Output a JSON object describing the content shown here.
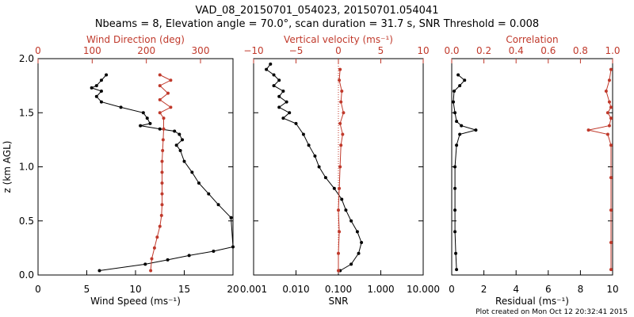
{
  "title_line1": "VAD_08_20150701_054023, 20150701.054041",
  "title_line2": "Nbeams = 8, Elevation angle = 70.0°, scan duration = 31.7 s, SNR Threshold = 0.008",
  "footer": "Plot created on Mon Oct 12 20:32:41 2015",
  "colors": {
    "primary": "#000000",
    "secondary": "#c0392b"
  },
  "chart_data": [
    {
      "type": "scatter",
      "panel": "wind",
      "ylabel": "z (km AGL)",
      "ylim": [
        0,
        2
      ],
      "yticks": [
        "0.0",
        "0.5",
        "1.0",
        "1.5",
        "2.0"
      ],
      "bottom_axis": {
        "label": "Wind Speed (ms⁻¹)",
        "range": [
          0,
          20
        ],
        "ticks": [
          "0",
          "5",
          "10",
          "15",
          "20"
        ]
      },
      "top_axis": {
        "label": "Wind Direction (deg)",
        "range": [
          0,
          360
        ],
        "ticks": [
          "0",
          "100",
          "200",
          "300"
        ]
      },
      "series": [
        {
          "color": "#000000",
          "axis": "bottom",
          "points": [
            [
              6.3,
              0.04
            ],
            [
              11,
              0.1
            ],
            [
              13.3,
              0.14
            ],
            [
              15.5,
              0.18
            ],
            [
              18,
              0.22
            ],
            [
              20,
              0.26
            ],
            [
              19.8,
              0.53
            ],
            [
              18.5,
              0.65
            ],
            [
              17.5,
              0.75
            ],
            [
              16.5,
              0.85
            ],
            [
              15.8,
              0.95
            ],
            [
              15,
              1.05
            ],
            [
              14.6,
              1.15
            ],
            [
              14.2,
              1.2
            ],
            [
              14.8,
              1.25
            ],
            [
              14.5,
              1.3
            ],
            [
              14,
              1.33
            ],
            [
              12.5,
              1.35
            ],
            [
              10.5,
              1.38
            ],
            [
              11.5,
              1.4
            ],
            [
              11.2,
              1.45
            ],
            [
              10.8,
              1.5
            ],
            [
              8.5,
              1.55
            ],
            [
              6.5,
              1.6
            ],
            [
              6.0,
              1.65
            ],
            [
              6.5,
              1.7
            ],
            [
              5.5,
              1.73
            ],
            [
              6.0,
              1.75
            ],
            [
              6.5,
              1.8
            ],
            [
              7,
              1.85
            ]
          ]
        },
        {
          "color": "#c0392b",
          "axis": "top",
          "points": [
            [
              208,
              0.04
            ],
            [
              210,
              0.15
            ],
            [
              215,
              0.25
            ],
            [
              220,
              0.35
            ],
            [
              225,
              0.45
            ],
            [
              228,
              0.55
            ],
            [
              229,
              0.65
            ],
            [
              229,
              0.75
            ],
            [
              229,
              0.85
            ],
            [
              229,
              0.95
            ],
            [
              229,
              1.05
            ],
            [
              230,
              1.15
            ],
            [
              231,
              1.25
            ],
            [
              232,
              1.35
            ],
            [
              232,
              1.45
            ],
            [
              225,
              1.5
            ],
            [
              245,
              1.55
            ],
            [
              225,
              1.62
            ],
            [
              240,
              1.68
            ],
            [
              225,
              1.75
            ],
            [
              245,
              1.8
            ],
            [
              225,
              1.85
            ]
          ]
        }
      ]
    },
    {
      "type": "scatter",
      "panel": "snr",
      "ylim": [
        0,
        2
      ],
      "bottom_axis": {
        "label": "SNR",
        "scale": "log",
        "range": [
          0.001,
          10
        ],
        "ticks": [
          "0.001",
          "0.010",
          "0.100",
          "1.000",
          "10.000"
        ]
      },
      "top_axis": {
        "label": "Vertical velocity (ms⁻¹)",
        "range": [
          -10,
          10
        ],
        "ticks": [
          "−10",
          "−5",
          "0",
          "5",
          "10"
        ]
      },
      "reference_line": {
        "axis": "top",
        "value": 0
      },
      "series": [
        {
          "color": "#000000",
          "axis": "bottom",
          "points": [
            [
              0.11,
              0.04
            ],
            [
              0.2,
              0.1
            ],
            [
              0.3,
              0.2
            ],
            [
              0.35,
              0.3
            ],
            [
              0.28,
              0.4
            ],
            [
              0.2,
              0.5
            ],
            [
              0.15,
              0.6
            ],
            [
              0.12,
              0.7
            ],
            [
              0.08,
              0.8
            ],
            [
              0.05,
              0.9
            ],
            [
              0.035,
              1.0
            ],
            [
              0.028,
              1.1
            ],
            [
              0.02,
              1.2
            ],
            [
              0.015,
              1.3
            ],
            [
              0.01,
              1.4
            ],
            [
              0.005,
              1.45
            ],
            [
              0.007,
              1.5
            ],
            [
              0.004,
              1.55
            ],
            [
              0.006,
              1.6
            ],
            [
              0.004,
              1.65
            ],
            [
              0.005,
              1.7
            ],
            [
              0.003,
              1.75
            ],
            [
              0.004,
              1.8
            ],
            [
              0.003,
              1.85
            ],
            [
              0.002,
              1.9
            ],
            [
              0.0025,
              1.95
            ]
          ]
        },
        {
          "color": "#c0392b",
          "axis": "top",
          "points": [
            [
              0.0,
              0.04
            ],
            [
              0.0,
              0.2
            ],
            [
              0.1,
              0.4
            ],
            [
              0.0,
              0.6
            ],
            [
              0.1,
              0.8
            ],
            [
              0.2,
              1.0
            ],
            [
              0.3,
              1.2
            ],
            [
              0.5,
              1.3
            ],
            [
              0.2,
              1.4
            ],
            [
              0.6,
              1.5
            ],
            [
              0.3,
              1.6
            ],
            [
              0.4,
              1.7
            ],
            [
              0.1,
              1.8
            ],
            [
              0.2,
              1.9
            ]
          ]
        }
      ]
    },
    {
      "type": "scatter",
      "panel": "residual",
      "ylim": [
        0,
        2
      ],
      "bottom_axis": {
        "label": "Residual (ms⁻¹)",
        "range": [
          0,
          10
        ],
        "ticks": [
          "0",
          "2",
          "4",
          "6",
          "8",
          "10"
        ]
      },
      "top_axis": {
        "label": "Correlation",
        "range": [
          0,
          1
        ],
        "ticks": [
          "0.0",
          "0.2",
          "0.4",
          "0.6",
          "0.8",
          "1.0"
        ]
      },
      "series": [
        {
          "color": "#000000",
          "axis": "bottom",
          "points": [
            [
              0.3,
              0.05
            ],
            [
              0.25,
              0.2
            ],
            [
              0.2,
              0.4
            ],
            [
              0.2,
              0.6
            ],
            [
              0.2,
              0.8
            ],
            [
              0.2,
              1.0
            ],
            [
              0.3,
              1.2
            ],
            [
              0.5,
              1.3
            ],
            [
              1.5,
              1.34
            ],
            [
              0.6,
              1.38
            ],
            [
              0.3,
              1.42
            ],
            [
              0.2,
              1.5
            ],
            [
              0.1,
              1.6
            ],
            [
              0.15,
              1.7
            ],
            [
              0.5,
              1.75
            ],
            [
              0.8,
              1.8
            ],
            [
              0.4,
              1.85
            ]
          ]
        },
        {
          "color": "#c0392b",
          "axis": "top",
          "points": [
            [
              0.99,
              0.05
            ],
            [
              0.99,
              0.3
            ],
            [
              0.99,
              0.6
            ],
            [
              0.99,
              0.9
            ],
            [
              0.99,
              1.2
            ],
            [
              0.97,
              1.3
            ],
            [
              0.85,
              1.34
            ],
            [
              0.98,
              1.38
            ],
            [
              0.99,
              1.45
            ],
            [
              0.97,
              1.5
            ],
            [
              0.99,
              1.55
            ],
            [
              0.98,
              1.6
            ],
            [
              0.96,
              1.7
            ],
            [
              0.98,
              1.8
            ],
            [
              0.99,
              1.9
            ]
          ]
        }
      ]
    }
  ]
}
